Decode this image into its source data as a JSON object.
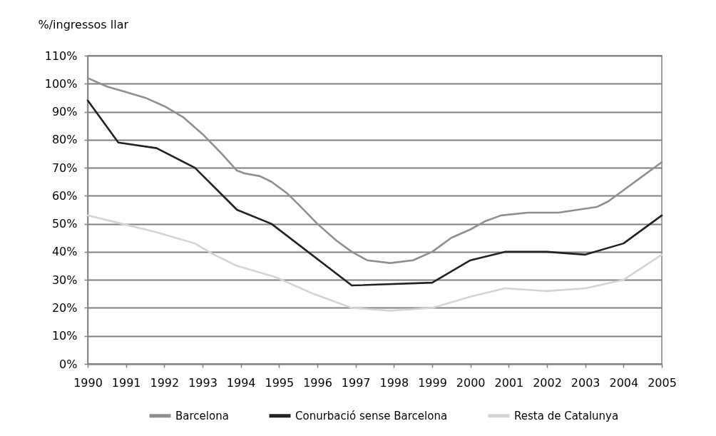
{
  "chart_data": {
    "type": "line",
    "ylabel": "%/ingressos llar",
    "xlim": [
      1990,
      2005
    ],
    "xticks": [
      1990,
      1991,
      1992,
      1993,
      1994,
      1995,
      1996,
      1997,
      1998,
      1999,
      2000,
      2001,
      2002,
      2003,
      2004,
      2005
    ],
    "ylim": [
      0,
      110
    ],
    "yticks": [
      {
        "value": 0,
        "label": "0%"
      },
      {
        "value": 10,
        "label": "10%"
      },
      {
        "value": 20,
        "label": "20%"
      },
      {
        "value": 30,
        "label": "30%"
      },
      {
        "value": 40,
        "label": "40%"
      },
      {
        "value": 50,
        "label": "50%"
      },
      {
        "value": 60,
        "label": "60%"
      },
      {
        "value": 70,
        "label": "70%"
      },
      {
        "value": 80,
        "label": "80%"
      },
      {
        "value": 90,
        "label": "90%"
      },
      {
        "value": 100,
        "label": "100%"
      },
      {
        "value": 110,
        "label": "110%"
      }
    ],
    "grid": "y",
    "legend": "bottom",
    "line_style": "solid",
    "series": [
      {
        "name": "Barcelona",
        "color": "#8f8f8f",
        "x": [
          1990,
          1990.5,
          1991,
          1991.5,
          1992,
          1992.5,
          1993,
          1993.5,
          1993.9,
          1994.1,
          1994.5,
          1994.8,
          1995.2,
          1995.5,
          1996,
          1996.5,
          1996.9,
          1997.3,
          1997.9,
          1998.5,
          1999,
          1999.5,
          2000,
          2000.4,
          2000.8,
          2001.5,
          2002.3,
          2002.8,
          2003.3,
          2003.6,
          2004,
          2004.5,
          2005
        ],
        "values": [
          102,
          99,
          97,
          95,
          92,
          88,
          82,
          75,
          69,
          68,
          67,
          65,
          61,
          57,
          50,
          44,
          40,
          37,
          36,
          37,
          40,
          45,
          48,
          51,
          53,
          54,
          54,
          55,
          56,
          58,
          62,
          67,
          72
        ]
      },
      {
        "name": "Conurbació sense Barcelona",
        "color": "#222222",
        "x": [
          1990,
          1990.8,
          1991.8,
          1992.8,
          1993.9,
          1994.8,
          1996.9,
          1999,
          2000,
          2000.9,
          2002,
          2003,
          2004,
          2005
        ],
        "values": [
          94,
          79,
          77,
          70,
          55,
          50,
          28,
          29,
          37,
          40,
          40,
          39,
          43,
          53
        ]
      },
      {
        "name": "Resta de Catalunya",
        "color": "#d4d4d4",
        "x": [
          1990,
          1990.9,
          1991.8,
          1992.8,
          1993.3,
          1993.9,
          1994.9,
          1995.9,
          1996.9,
          1997.9,
          1999,
          2000,
          2000.9,
          2002,
          2003,
          2004,
          2005
        ],
        "values": [
          53,
          50,
          47,
          43,
          39,
          35,
          31,
          25,
          20,
          19,
          20,
          24,
          27,
          26,
          27,
          30,
          39
        ]
      }
    ]
  }
}
